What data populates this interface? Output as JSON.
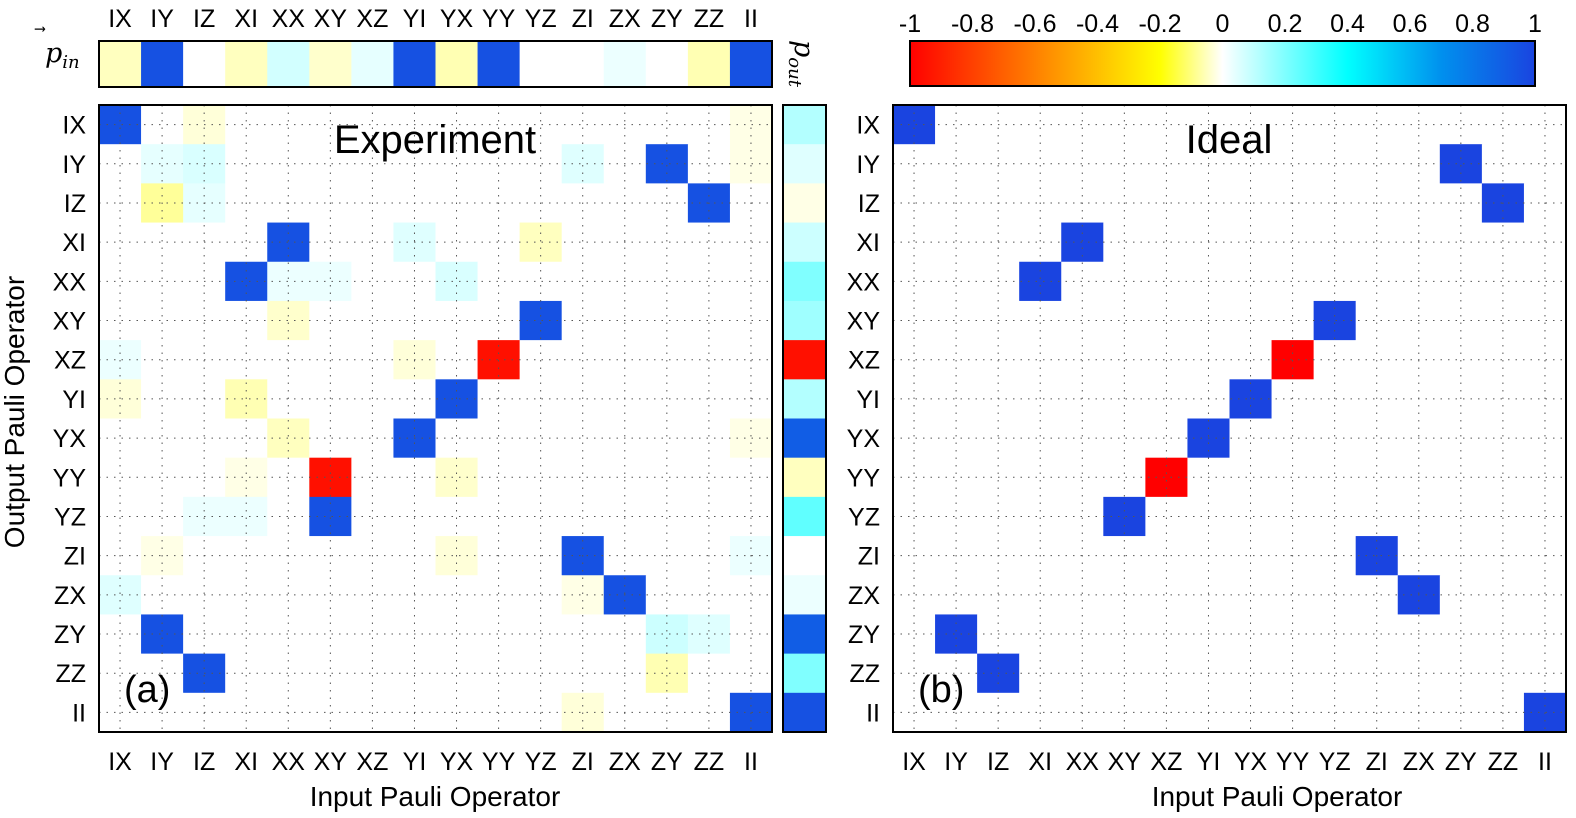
{
  "chart_data": [
    {
      "type": "heatmap",
      "label": "(a)",
      "title": "Experiment",
      "xlabel": "Input Pauli Operator",
      "ylabel": "Output Pauli Operator",
      "x_categories": [
        "IX",
        "IY",
        "IZ",
        "XI",
        "XX",
        "XY",
        "XZ",
        "YI",
        "YX",
        "YY",
        "YZ",
        "ZI",
        "ZX",
        "ZY",
        "ZZ",
        "II"
      ],
      "y_categories": [
        "IX",
        "IY",
        "IZ",
        "XI",
        "XX",
        "XY",
        "XZ",
        "YI",
        "YX",
        "YY",
        "YZ",
        "ZI",
        "ZX",
        "ZY",
        "ZZ",
        "II"
      ],
      "clim": [
        -1,
        1
      ],
      "values": [
        [
          0.95,
          0,
          -0.03,
          0,
          0,
          0,
          0,
          0,
          0,
          0,
          0,
          0,
          0,
          0,
          0,
          -0.02
        ],
        [
          0,
          0.04,
          0.06,
          0,
          0,
          0,
          0,
          0,
          0,
          0,
          0,
          0.05,
          0,
          0.95,
          0,
          -0.02
        ],
        [
          0,
          -0.08,
          0.04,
          0,
          0,
          0,
          0,
          0,
          0,
          0,
          0,
          0,
          0,
          0,
          0.95,
          0
        ],
        [
          0,
          0,
          0,
          0,
          0.95,
          0,
          0,
          0.05,
          0,
          0,
          -0.05,
          0,
          0,
          0,
          0,
          0
        ],
        [
          0,
          0,
          0,
          0.95,
          0.03,
          0.03,
          0,
          0,
          0.06,
          0,
          0,
          0,
          0,
          0,
          0,
          0
        ],
        [
          0,
          0,
          0,
          0,
          -0.04,
          0,
          0,
          0,
          0,
          0,
          0.95,
          0,
          0,
          0,
          0,
          0
        ],
        [
          0.03,
          0,
          0,
          0,
          0,
          0,
          0,
          -0.03,
          0,
          -0.95,
          0,
          0,
          0,
          0,
          0,
          0
        ],
        [
          -0.03,
          0,
          0,
          -0.06,
          0,
          0,
          0,
          0,
          0.95,
          0,
          0,
          0,
          0,
          0,
          0,
          0
        ],
        [
          0,
          0,
          0,
          0,
          -0.05,
          0,
          0,
          0.95,
          0,
          0,
          0,
          0,
          0,
          0,
          0,
          -0.02
        ],
        [
          0,
          0,
          0,
          -0.02,
          0,
          -0.95,
          0,
          0,
          -0.04,
          0,
          0,
          0,
          0,
          0,
          0,
          0
        ],
        [
          0,
          0,
          0.03,
          0.03,
          0,
          0.95,
          0,
          0,
          0,
          0,
          0,
          0,
          0,
          0,
          0,
          0
        ],
        [
          0,
          -0.02,
          0,
          0,
          0,
          0,
          0,
          0,
          -0.03,
          0,
          0,
          0.95,
          0,
          0,
          0,
          0.03
        ],
        [
          0.05,
          0,
          0,
          0,
          0,
          0,
          0,
          0,
          0,
          0,
          0,
          -0.02,
          0.95,
          0,
          0,
          0
        ],
        [
          0,
          0.95,
          0,
          0,
          0,
          0,
          0,
          0,
          0,
          0,
          0,
          0,
          0,
          0.08,
          0.05,
          0
        ],
        [
          0,
          0,
          0.95,
          0,
          0,
          0,
          0,
          0,
          0,
          0,
          0,
          0,
          0,
          -0.06,
          0,
          0
        ],
        [
          0,
          0,
          0,
          0,
          0,
          0,
          0,
          0,
          0,
          0,
          0,
          -0.03,
          0,
          0,
          0,
          0.95
        ]
      ],
      "p_in": {
        "label": "p⃗in",
        "values": [
          -0.05,
          0.95,
          0,
          -0.05,
          0.07,
          -0.04,
          0.04,
          0.95,
          -0.06,
          0.95,
          0,
          0,
          0.03,
          0,
          -0.06,
          0.95
        ]
      },
      "p_out": {
        "label": "p⃗out",
        "values": [
          0.12,
          0.05,
          -0.02,
          0.08,
          0.2,
          0.15,
          -0.95,
          0.12,
          0.9,
          -0.05,
          0.25,
          0,
          0.03,
          0.9,
          0.2,
          0.95
        ]
      },
      "grid": true
    },
    {
      "type": "heatmap",
      "label": "(b)",
      "title": "Ideal",
      "xlabel": "Input Pauli Operator",
      "ylabel": "",
      "x_categories": [
        "IX",
        "IY",
        "IZ",
        "XI",
        "XX",
        "XY",
        "XZ",
        "YI",
        "YX",
        "YY",
        "YZ",
        "ZI",
        "ZX",
        "ZY",
        "ZZ",
        "II"
      ],
      "y_categories": [
        "IX",
        "IY",
        "IZ",
        "XI",
        "XX",
        "XY",
        "XZ",
        "YI",
        "YX",
        "YY",
        "YZ",
        "ZI",
        "ZX",
        "ZY",
        "ZZ",
        "II"
      ],
      "clim": [
        -1,
        1
      ],
      "nonzero_entries": [
        {
          "row": "IX",
          "col": "IX",
          "value": 1
        },
        {
          "row": "IY",
          "col": "ZY",
          "value": 1
        },
        {
          "row": "IZ",
          "col": "ZZ",
          "value": 1
        },
        {
          "row": "XI",
          "col": "XX",
          "value": 1
        },
        {
          "row": "XX",
          "col": "XI",
          "value": 1
        },
        {
          "row": "XY",
          "col": "YZ",
          "value": 1
        },
        {
          "row": "XZ",
          "col": "YY",
          "value": -1
        },
        {
          "row": "YI",
          "col": "YX",
          "value": 1
        },
        {
          "row": "YX",
          "col": "YI",
          "value": 1
        },
        {
          "row": "YY",
          "col": "XZ",
          "value": -1
        },
        {
          "row": "YZ",
          "col": "XY",
          "value": 1
        },
        {
          "row": "ZI",
          "col": "ZI",
          "value": 1
        },
        {
          "row": "ZX",
          "col": "ZX",
          "value": 1
        },
        {
          "row": "ZY",
          "col": "IY",
          "value": 1
        },
        {
          "row": "ZZ",
          "col": "IZ",
          "value": 1
        },
        {
          "row": "II",
          "col": "II",
          "value": 1
        }
      ],
      "grid": true
    }
  ],
  "colorbar": {
    "colormap": "jet",
    "min": -1,
    "max": 1,
    "tick_labels": [
      "-1",
      "-0.8",
      "-0.6",
      "-0.4",
      "-0.2",
      "0",
      "0.2",
      "0.4",
      "0.6",
      "0.8",
      "1"
    ]
  }
}
